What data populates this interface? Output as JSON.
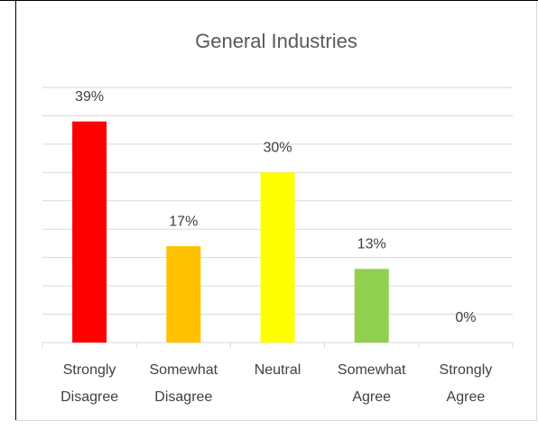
{
  "chart_data": {
    "type": "bar",
    "title": "General Industries",
    "categories": [
      "Strongly Disagree",
      "Somewhat Disagree",
      "Neutral",
      "Somewhat Agree",
      "Strongly Agree"
    ],
    "values": [
      39,
      17,
      30,
      13,
      0
    ],
    "value_labels": [
      "39%",
      "17%",
      "30%",
      "13%",
      "0%"
    ],
    "colors": [
      "#ff0000",
      "#ffc000",
      "#ffff00",
      "#92d050",
      "#5b9bd5"
    ],
    "ylim": [
      0,
      45
    ],
    "yticks": [
      0,
      5,
      10,
      15,
      20,
      25,
      30,
      35,
      40,
      45
    ],
    "grid": true
  }
}
